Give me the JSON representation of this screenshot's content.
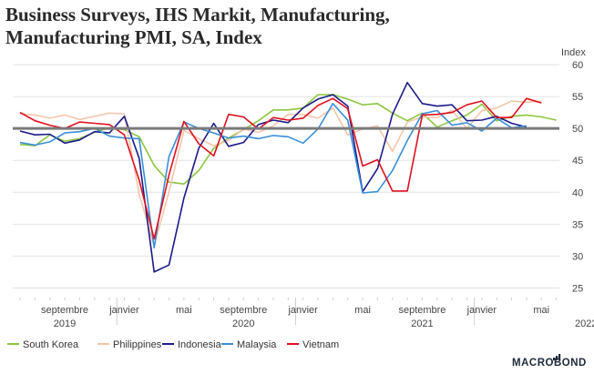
{
  "title_lines": [
    "Business Surveys, IHS Markit, Manufacturing,",
    "Manufacturing PMI, SA, Index"
  ],
  "chart_data": {
    "type": "line",
    "title": "Business Surveys, IHS Markit, Manufacturing, Manufacturing PMI, SA, Index",
    "ylabel": "Index",
    "ylim": [
      23.5,
      61
    ],
    "yticks": [
      25,
      30,
      35,
      40,
      45,
      50,
      55,
      60
    ],
    "reference_line": 50,
    "x_start_month": "2019-06",
    "x_end_month": "2022-08",
    "xtick_labels": [
      {
        "month_index": 3,
        "label": "septembre"
      },
      {
        "month_index": 7,
        "label": "janvier"
      },
      {
        "month_index": 11,
        "label": "mai"
      },
      {
        "month_index": 15,
        "label": "septembre"
      },
      {
        "month_index": 19,
        "label": "janvier"
      },
      {
        "month_index": 23,
        "label": "mai"
      },
      {
        "month_index": 27,
        "label": "septembre"
      },
      {
        "month_index": 31,
        "label": "janvier"
      },
      {
        "month_index": 35,
        "label": "mai"
      }
    ],
    "year_labels": [
      {
        "month_index": 3,
        "label": "2019"
      },
      {
        "month_index": 15,
        "label": "2020"
      },
      {
        "month_index": 27,
        "label": "2021"
      },
      {
        "month_index": 38,
        "label": "2022"
      }
    ],
    "series": [
      {
        "name": "South Korea",
        "color": "#8cc63f",
        "start_index": 0,
        "values": [
          47.5,
          47.3,
          49.0,
          48.0,
          48.4,
          49.4,
          50.1,
          49.8,
          48.7,
          44.2,
          41.6,
          41.3,
          43.4,
          46.9,
          48.5,
          49.8,
          51.2,
          52.9,
          52.9,
          53.2,
          55.3,
          55.3,
          54.6,
          53.7,
          53.9,
          52.4,
          51.2,
          52.4,
          50.2,
          51.2,
          52.1,
          53.8,
          51.2,
          51.9,
          52.1,
          51.8,
          51.3
        ]
      },
      {
        "name": "Philippines",
        "color": "#f5c6aa",
        "start_index": 0,
        "values": [
          52.3,
          52.1,
          51.6,
          52.1,
          51.4,
          51.9,
          52.4,
          52.3,
          39.7,
          31.6,
          40.1,
          49.7,
          48.4,
          47.3,
          48.1,
          49.9,
          49.4,
          50.4,
          52.2,
          52.2,
          51.6,
          53.2,
          49.0,
          49.9,
          50.4,
          46.4,
          51.0,
          51.8,
          51.7,
          52.8,
          50.0,
          52.8,
          53.2,
          54.3,
          54.1,
          54.3
        ]
      },
      {
        "name": "Indonesia",
        "color": "#1b1a8a",
        "start_index": 0,
        "values": [
          49.6,
          49.0,
          49.1,
          47.7,
          48.2,
          49.5,
          49.3,
          51.9,
          45.3,
          27.5,
          28.6,
          39.1,
          46.9,
          50.8,
          47.2,
          47.8,
          50.6,
          51.3,
          50.9,
          53.2,
          54.6,
          55.3,
          53.5,
          40.1,
          43.7,
          52.2,
          57.2,
          53.9,
          53.5,
          53.7,
          51.2,
          51.3,
          51.9,
          50.8,
          50.2
        ]
      },
      {
        "name": "Malaysia",
        "color": "#3a8fd8",
        "start_index": 0,
        "values": [
          47.8,
          47.4,
          47.9,
          49.3,
          49.5,
          50.0,
          48.8,
          48.5,
          48.4,
          31.3,
          45.6,
          51.0,
          50.0,
          49.3,
          48.5,
          48.8,
          48.4,
          48.9,
          48.7,
          47.7,
          49.9,
          53.9,
          51.3,
          39.9,
          40.1,
          43.4,
          48.1,
          52.3,
          52.8,
          50.5,
          50.9,
          49.6,
          51.6,
          50.1,
          50.4
        ]
      },
      {
        "name": "Vietnam",
        "color": "#e0101e",
        "start_index": 0,
        "values": [
          52.5,
          51.2,
          50.5,
          50.0,
          51.0,
          50.8,
          50.6,
          49.0,
          41.9,
          32.7,
          42.7,
          51.1,
          47.6,
          45.7,
          52.2,
          51.8,
          49.9,
          51.7,
          51.3,
          51.6,
          53.6,
          54.7,
          53.1,
          44.1,
          45.1,
          40.2,
          40.2,
          52.1,
          52.2,
          52.5,
          53.7,
          54.3,
          51.7,
          51.7,
          54.7,
          54.0
        ]
      }
    ]
  },
  "legend": [
    {
      "name": "South Korea",
      "color": "#8cc63f"
    },
    {
      "name": "Philippines",
      "color": "#f5c6aa"
    },
    {
      "name": "Indonesia",
      "color": "#1b1a8a"
    },
    {
      "name": "Malaysia",
      "color": "#3a8fd8"
    },
    {
      "name": "Vietnam",
      "color": "#e0101e"
    }
  ],
  "logo": {
    "text": "MACROBOND",
    "color": "#1d2a3a"
  }
}
